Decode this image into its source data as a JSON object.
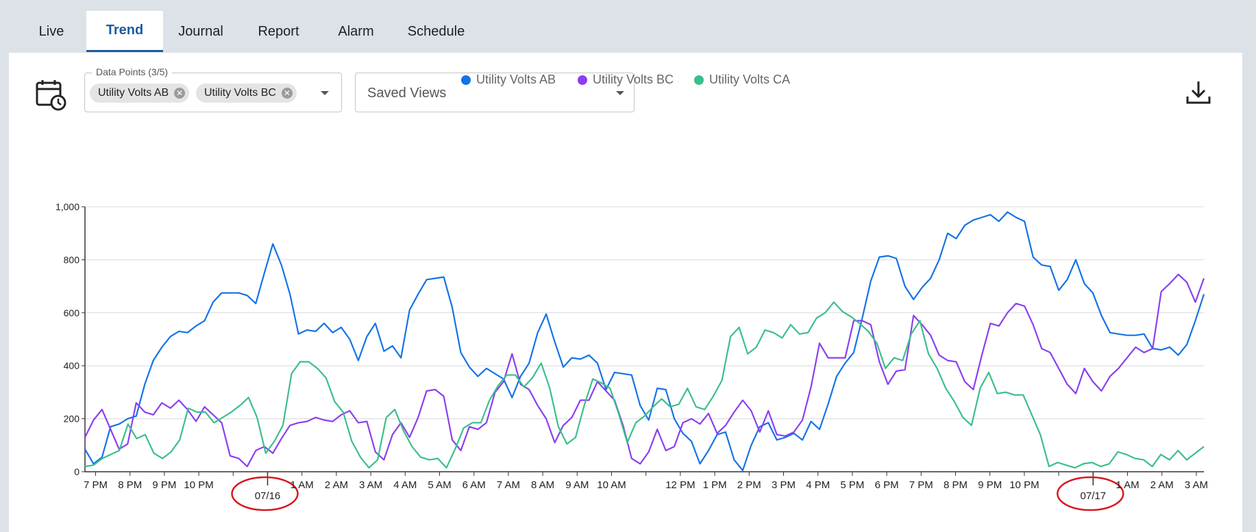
{
  "tabs": [
    {
      "label": "Live",
      "active": false
    },
    {
      "label": "Trend",
      "active": true
    },
    {
      "label": "Journal",
      "active": false
    },
    {
      "label": "Report",
      "active": false
    },
    {
      "label": "Alarm",
      "active": false
    },
    {
      "label": "Schedule",
      "active": false
    }
  ],
  "toolbar": {
    "calendar_icon": "calendar-clock-icon",
    "data_points_label": "Data Points (3/5)",
    "chips": [
      "Utility Volts AB",
      "Utility Volts BC"
    ],
    "saved_views_placeholder": "Saved Views",
    "download_icon": "download-icon"
  },
  "colors": {
    "ab": "#1473e6",
    "bc": "#8a3ff0",
    "ca": "#3bbf8a",
    "annotation": "#d9181e"
  },
  "chart_data": {
    "type": "line",
    "legend_position": "top-center",
    "grid": true,
    "ylim": [
      0,
      1000
    ],
    "yticks": [
      0,
      200,
      400,
      600,
      800,
      1000
    ],
    "ytick_labels": [
      "0",
      "200",
      "400",
      "600",
      "800",
      "1,000"
    ],
    "xtick_labels": [
      "7 PM",
      "8 PM",
      "9 PM",
      "10 PM",
      "07/16",
      "1 AM",
      "2 AM",
      "3 AM",
      "4 AM",
      "5 AM",
      "6 AM",
      "7 AM",
      "8 AM",
      "9 AM",
      "10 AM",
      "12 PM",
      "1 PM",
      "2 PM",
      "3 PM",
      "4 PM",
      "5 PM",
      "6 PM",
      "7 PM",
      "8 PM",
      "9 PM",
      "10 PM",
      "07/17",
      "1 AM",
      "2 AM",
      "3 AM"
    ],
    "x_start": "07/15 6:30 PM",
    "x_end": "07/17 3:15 AM",
    "annotations": [
      "07/16",
      "07/17"
    ],
    "series": [
      {
        "name": "Utility Volts AB",
        "values": [
          85,
          30,
          55,
          170,
          180,
          200,
          210,
          330,
          420,
          470,
          510,
          530,
          525,
          550,
          570,
          640,
          675,
          675,
          675,
          665,
          635,
          750,
          860,
          780,
          670,
          520,
          535,
          530,
          560,
          525,
          545,
          500,
          420,
          510,
          560,
          455,
          475,
          430,
          610,
          670,
          725,
          730,
          735,
          620,
          450,
          395,
          360,
          390,
          370,
          350,
          280,
          360,
          410,
          525,
          595,
          490,
          395,
          430,
          425,
          440,
          410,
          310,
          375,
          370,
          365,
          250,
          195,
          315,
          310,
          200,
          145,
          115,
          30,
          80,
          140,
          150,
          45,
          5,
          100,
          170,
          185,
          120,
          130,
          145,
          120,
          190,
          160,
          255,
          360,
          410,
          450,
          580,
          720,
          810,
          815,
          805,
          700,
          650,
          695,
          730,
          800,
          900,
          880,
          930,
          950,
          960,
          970,
          945,
          980,
          960,
          945,
          810,
          780,
          775,
          685,
          725,
          800,
          710,
          675,
          590,
          525,
          520,
          515,
          515,
          520,
          465,
          460,
          470,
          440,
          480,
          570,
          670
        ]
      },
      {
        "name": "Utility Volts BC",
        "values": [
          130,
          195,
          235,
          160,
          85,
          105,
          260,
          225,
          215,
          260,
          240,
          270,
          235,
          190,
          245,
          215,
          185,
          60,
          50,
          20,
          80,
          95,
          70,
          125,
          175,
          185,
          190,
          205,
          195,
          190,
          215,
          230,
          185,
          190,
          75,
          45,
          140,
          185,
          130,
          205,
          305,
          310,
          285,
          120,
          80,
          170,
          160,
          185,
          300,
          340,
          445,
          330,
          310,
          250,
          200,
          110,
          175,
          205,
          270,
          270,
          340,
          305,
          270,
          175,
          50,
          30,
          75,
          160,
          80,
          95,
          185,
          200,
          180,
          220,
          145,
          175,
          225,
          270,
          230,
          150,
          230,
          140,
          135,
          150,
          195,
          320,
          485,
          430,
          430,
          430,
          570,
          570,
          555,
          415,
          330,
          380,
          385,
          590,
          555,
          515,
          440,
          420,
          415,
          340,
          310,
          440,
          560,
          550,
          600,
          635,
          625,
          555,
          465,
          450,
          390,
          330,
          295,
          390,
          340,
          305,
          360,
          390,
          430,
          470,
          450,
          465,
          680,
          710,
          745,
          715,
          640,
          730
        ]
      },
      {
        "name": "Utility Volts CA",
        "values": [
          20,
          25,
          50,
          65,
          80,
          180,
          125,
          140,
          70,
          50,
          75,
          120,
          240,
          225,
          225,
          185,
          205,
          225,
          250,
          280,
          205,
          70,
          115,
          175,
          370,
          415,
          415,
          390,
          355,
          265,
          225,
          115,
          55,
          15,
          45,
          205,
          235,
          155,
          95,
          55,
          45,
          50,
          15,
          85,
          165,
          185,
          185,
          270,
          325,
          365,
          365,
          320,
          355,
          410,
          315,
          170,
          105,
          130,
          250,
          350,
          335,
          315,
          220,
          110,
          185,
          210,
          245,
          275,
          245,
          255,
          315,
          245,
          235,
          285,
          345,
          510,
          545,
          445,
          470,
          535,
          525,
          505,
          555,
          520,
          525,
          580,
          600,
          640,
          605,
          585,
          560,
          530,
          485,
          390,
          430,
          420,
          520,
          570,
          445,
          390,
          315,
          265,
          205,
          175,
          315,
          375,
          295,
          300,
          290,
          290,
          215,
          140,
          20,
          35,
          25,
          15,
          30,
          35,
          20,
          30,
          75,
          65,
          50,
          45,
          20,
          65,
          45,
          80,
          45,
          70,
          95
        ]
      }
    ]
  }
}
